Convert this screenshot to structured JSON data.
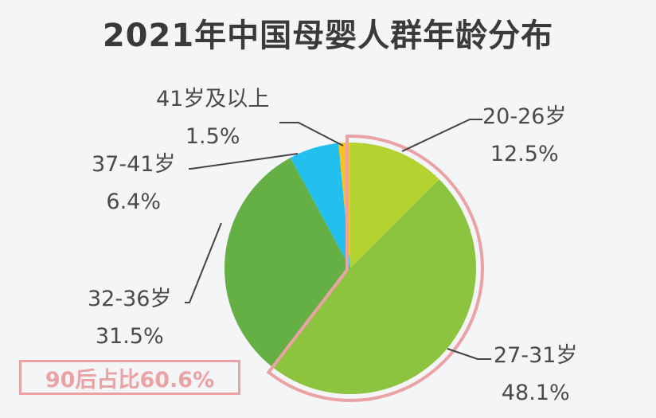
{
  "title": "2021年中国母婴人群年龄分布",
  "callout": "90后占比60.6%",
  "labels": {
    "s0": {
      "name": "20-26岁",
      "pct": "12.5%"
    },
    "s1": {
      "name": "27-31岁",
      "pct": "48.1%"
    },
    "s2": {
      "name": "32-36岁",
      "pct": "31.5%"
    },
    "s3": {
      "name": "37-41岁",
      "pct": "6.4%"
    },
    "s4": {
      "name": "41岁及以上",
      "pct": "1.5%"
    }
  },
  "colors": {
    "s0": "#b5d233",
    "s1": "#8cc43f",
    "s2": "#65b045",
    "s3": "#23c0ef",
    "s4": "#f9c21c",
    "highlight": "#eba2a4",
    "leader": "#444444"
  },
  "chart_data": {
    "type": "pie",
    "title": "2021年中国母婴人群年龄分布",
    "categories": [
      "20-26岁",
      "27-31岁",
      "32-36岁",
      "37-41岁",
      "41岁及以上"
    ],
    "values": [
      12.5,
      48.1,
      31.5,
      6.4,
      1.5
    ],
    "unit": "%",
    "start_angle": "12 o'clock, clockwise",
    "annotation": "90后占比60.6%",
    "highlighted_categories": [
      "20-26岁",
      "27-31岁"
    ]
  }
}
